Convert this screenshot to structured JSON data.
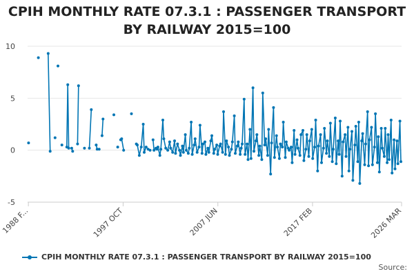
{
  "chart_data": {
    "type": "line",
    "title": "CPIH MONTHLY RATE 07.3.1 : PASSENGER TRANSPORT BY RAILWAY 2015=100",
    "xlabel": "",
    "ylabel": "",
    "ylim": [
      -5,
      10
    ],
    "yticks": [
      10,
      5,
      0,
      -5
    ],
    "xlim": [
      1988.0,
      2026.17
    ],
    "xticks": [
      {
        "label": "1988 F...",
        "year": 1988.08
      },
      {
        "label": "1997 OCT",
        "year": 1997.75
      },
      {
        "label": "2007 JUN",
        "year": 2007.42
      },
      {
        "label": "2017 FEB",
        "year": 2017.08
      },
      {
        "label": "2026 MAR",
        "year": 2026.17
      }
    ],
    "color": "#0075b4",
    "grid": true,
    "series": [
      {
        "name": "CPIH MONTHLY RATE 07.3.1 : PASSENGER TRANSPORT BY RAILWAY 2015=100",
        "points": [
          [
            1988.1,
            0.7
          ],
          [
            1989.1,
            8.9
          ],
          [
            1990.1,
            9.3
          ],
          [
            1990.3,
            -0.1
          ],
          [
            1990.8,
            1.2
          ],
          [
            1991.1,
            8.1
          ],
          [
            1991.5,
            0.5
          ],
          [
            1992.0,
            0.3
          ],
          [
            1992.1,
            6.3
          ],
          [
            1992.2,
            0.2
          ],
          [
            1992.5,
            0.2
          ],
          [
            1992.6,
            -0.1
          ],
          [
            1993.1,
            0.6
          ],
          [
            1993.2,
            6.2
          ],
          [
            1993.8,
            0.2
          ],
          [
            1994.3,
            0.2
          ],
          [
            1994.5,
            3.9
          ],
          [
            1995.0,
            0.5
          ],
          [
            1995.1,
            0.1
          ],
          [
            1995.3,
            0.1
          ],
          [
            1995.6,
            1.4
          ],
          [
            1995.7,
            3.0
          ],
          [
            1996.8,
            3.4
          ],
          [
            1997.2,
            0.3
          ],
          [
            1997.5,
            1.0
          ],
          [
            1997.6,
            1.1
          ],
          [
            1997.8,
            0.0
          ],
          [
            1998.6,
            3.5
          ],
          [
            1999.1,
            0.6
          ],
          [
            1999.2,
            0.5
          ],
          [
            1999.4,
            -0.5
          ],
          [
            1999.6,
            0.3
          ],
          [
            1999.8,
            2.5
          ],
          [
            1999.9,
            -0.2
          ],
          [
            2000.1,
            0.3
          ],
          [
            2000.3,
            0.1
          ],
          [
            2000.5,
            0.0
          ],
          [
            2000.8,
            1.0
          ],
          [
            2000.9,
            0.0
          ],
          [
            2001.1,
            0.2
          ],
          [
            2001.2,
            0.1
          ],
          [
            2001.3,
            0.3
          ],
          [
            2001.5,
            -0.5
          ],
          [
            2001.6,
            0.1
          ],
          [
            2001.8,
            2.9
          ],
          [
            2001.9,
            1.1
          ],
          [
            2002.1,
            0.2
          ],
          [
            2002.3,
            0.0
          ],
          [
            2002.5,
            0.8
          ],
          [
            2002.6,
            0.2
          ],
          [
            2002.8,
            -0.2
          ],
          [
            2003.0,
            0.9
          ],
          [
            2003.1,
            -0.3
          ],
          [
            2003.3,
            0.6
          ],
          [
            2003.5,
            0.0
          ],
          [
            2003.6,
            -0.5
          ],
          [
            2003.8,
            0.4
          ],
          [
            2003.9,
            -0.2
          ],
          [
            2004.1,
            1.5
          ],
          [
            2004.2,
            0.0
          ],
          [
            2004.4,
            -0.3
          ],
          [
            2004.5,
            0.2
          ],
          [
            2004.7,
            2.7
          ],
          [
            2004.8,
            -0.4
          ],
          [
            2005.0,
            0.5
          ],
          [
            2005.1,
            1.1
          ],
          [
            2005.3,
            -0.2
          ],
          [
            2005.5,
            0.3
          ],
          [
            2005.6,
            2.4
          ],
          [
            2005.8,
            -0.3
          ],
          [
            2005.9,
            0.6
          ],
          [
            2006.1,
            0.8
          ],
          [
            2006.2,
            -0.4
          ],
          [
            2006.4,
            0.2
          ],
          [
            2006.5,
            -0.2
          ],
          [
            2006.7,
            0.9
          ],
          [
            2006.8,
            1.4
          ],
          [
            2007.0,
            -0.3
          ],
          [
            2007.1,
            0.1
          ],
          [
            2007.3,
            0.5
          ],
          [
            2007.4,
            -0.4
          ],
          [
            2007.6,
            0.4
          ],
          [
            2007.7,
            0.6
          ],
          [
            2007.9,
            -0.2
          ],
          [
            2008.0,
            3.7
          ],
          [
            2008.2,
            -0.4
          ],
          [
            2008.3,
            0.9
          ],
          [
            2008.5,
            0.3
          ],
          [
            2008.6,
            -0.5
          ],
          [
            2008.8,
            0.1
          ],
          [
            2008.9,
            0.8
          ],
          [
            2009.1,
            3.3
          ],
          [
            2009.2,
            -0.3
          ],
          [
            2009.4,
            0.4
          ],
          [
            2009.5,
            0.8
          ],
          [
            2009.7,
            -0.4
          ],
          [
            2009.8,
            0.2
          ],
          [
            2009.9,
            0.6
          ],
          [
            2010.1,
            4.9
          ],
          [
            2010.2,
            -0.4
          ],
          [
            2010.4,
            0.6
          ],
          [
            2010.5,
            -0.9
          ],
          [
            2010.7,
            2.0
          ],
          [
            2010.8,
            -0.8
          ],
          [
            2011.0,
            6.0
          ],
          [
            2011.1,
            -0.1
          ],
          [
            2011.3,
            0.9
          ],
          [
            2011.4,
            1.5
          ],
          [
            2011.6,
            -0.5
          ],
          [
            2011.7,
            0.4
          ],
          [
            2011.9,
            -0.9
          ],
          [
            2012.0,
            5.5
          ],
          [
            2012.2,
            0.5
          ],
          [
            2012.3,
            1.1
          ],
          [
            2012.5,
            -0.5
          ],
          [
            2012.6,
            2.0
          ],
          [
            2012.8,
            -2.3
          ],
          [
            2012.9,
            0.7
          ],
          [
            2013.1,
            4.1
          ],
          [
            2013.2,
            -0.7
          ],
          [
            2013.4,
            1.4
          ],
          [
            2013.5,
            0.3
          ],
          [
            2013.7,
            -0.8
          ],
          [
            2013.8,
            0.6
          ],
          [
            2014.0,
            0.3
          ],
          [
            2014.1,
            2.7
          ],
          [
            2014.3,
            -0.7
          ],
          [
            2014.4,
            0.8
          ],
          [
            2014.6,
            0.2
          ],
          [
            2014.7,
            0.0
          ],
          [
            2014.9,
            0.3
          ],
          [
            2015.0,
            -1.2
          ],
          [
            2015.2,
            1.9
          ],
          [
            2015.3,
            -0.4
          ],
          [
            2015.5,
            1.0
          ],
          [
            2015.6,
            0.2
          ],
          [
            2015.8,
            -0.5
          ],
          [
            2015.9,
            1.5
          ],
          [
            2016.1,
            1.9
          ],
          [
            2016.2,
            -1.0
          ],
          [
            2016.4,
            0.1
          ],
          [
            2016.5,
            1.5
          ],
          [
            2016.7,
            -0.6
          ],
          [
            2016.8,
            0.9
          ],
          [
            2017.0,
            2.0
          ],
          [
            2017.1,
            -0.8
          ],
          [
            2017.3,
            0.3
          ],
          [
            2017.4,
            2.9
          ],
          [
            2017.6,
            -2.0
          ],
          [
            2017.7,
            0.4
          ],
          [
            2017.9,
            1.5
          ],
          [
            2018.0,
            -1.2
          ],
          [
            2018.2,
            0.2
          ],
          [
            2018.3,
            2.1
          ],
          [
            2018.5,
            -0.3
          ],
          [
            2018.6,
            0.9
          ],
          [
            2018.8,
            -0.6
          ],
          [
            2018.9,
            2.6
          ],
          [
            2019.1,
            -1.1
          ],
          [
            2019.2,
            0.1
          ],
          [
            2019.4,
            3.1
          ],
          [
            2019.5,
            -1.3
          ],
          [
            2019.7,
            0.9
          ],
          [
            2019.8,
            -0.4
          ],
          [
            2019.9,
            2.8
          ],
          [
            2020.1,
            -2.5
          ],
          [
            2020.2,
            0.8
          ],
          [
            2020.4,
            1.5
          ],
          [
            2020.5,
            -0.6
          ],
          [
            2020.7,
            2.2
          ],
          [
            2020.8,
            -2.0
          ],
          [
            2020.9,
            0.1
          ],
          [
            2021.1,
            1.8
          ],
          [
            2021.2,
            -2.9
          ],
          [
            2021.4,
            0.5
          ],
          [
            2021.5,
            2.3
          ],
          [
            2021.7,
            -1.1
          ],
          [
            2021.8,
            2.7
          ],
          [
            2021.9,
            -3.2
          ],
          [
            2022.1,
            0.9
          ],
          [
            2022.2,
            1.6
          ],
          [
            2022.4,
            -1.4
          ],
          [
            2022.5,
            0.6
          ],
          [
            2022.7,
            3.7
          ],
          [
            2022.8,
            -1.5
          ],
          [
            2022.9,
            1.0
          ],
          [
            2023.1,
            2.2
          ],
          [
            2023.2,
            -1.4
          ],
          [
            2023.4,
            0.3
          ],
          [
            2023.5,
            3.5
          ],
          [
            2023.7,
            -1.2
          ],
          [
            2023.8,
            1.3
          ],
          [
            2023.9,
            -2.1
          ],
          [
            2024.1,
            2.1
          ],
          [
            2024.2,
            0.2
          ],
          [
            2024.4,
            -0.6
          ],
          [
            2024.5,
            2.1
          ],
          [
            2024.7,
            -1.2
          ],
          [
            2024.8,
            1.5
          ],
          [
            2024.9,
            -0.9
          ],
          [
            2025.1,
            2.9
          ],
          [
            2025.2,
            -2.2
          ],
          [
            2025.4,
            1.0
          ],
          [
            2025.5,
            -1.8
          ],
          [
            2025.7,
            0.9
          ],
          [
            2025.8,
            -1.3
          ],
          [
            2026.0,
            2.8
          ],
          [
            2026.1,
            -1.1
          ]
        ]
      }
    ],
    "legend": "bottom-left"
  },
  "credit": "Source:"
}
